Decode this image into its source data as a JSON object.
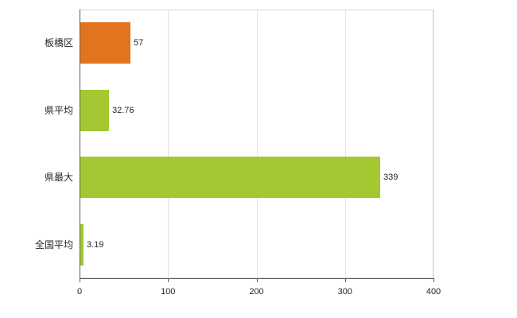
{
  "chart_data": {
    "type": "bar",
    "orientation": "horizontal",
    "title": "",
    "xlabel": "",
    "ylabel": "",
    "categories": [
      "板橋区",
      "県平均",
      "県最大",
      "全国平均"
    ],
    "values": [
      57,
      32.76,
      339,
      3.19
    ],
    "value_labels": [
      "57",
      "32.76",
      "339",
      "3.19"
    ],
    "bar_colors": [
      "#e2741f",
      "#a3c832",
      "#a3c832",
      "#a3c832"
    ],
    "xlim": [
      0,
      400
    ],
    "xticks": [
      0,
      100,
      200,
      300,
      400
    ],
    "xtick_labels": [
      "0",
      "100",
      "200",
      "300",
      "400"
    ],
    "grid": true,
    "legend": "none",
    "colors": {
      "orange_bar": "#e2741f",
      "green_bar": "#a3c832",
      "gridline": "#e3e3e3",
      "axis": "#5a5a5a",
      "plot_border": "#d9d9d9",
      "text": "#262626",
      "background": "#ffffff"
    }
  }
}
